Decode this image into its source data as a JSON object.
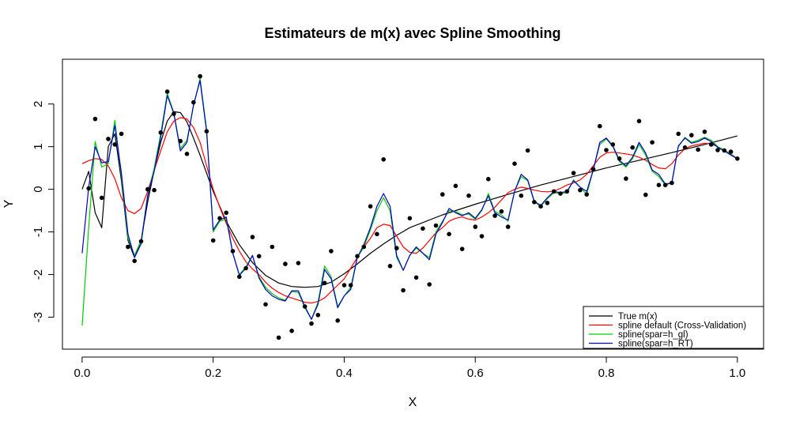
{
  "chart_data": {
    "type": "scatter",
    "title": "Estimateurs de m(x) avec Spline Smoothing",
    "xlabel": "X",
    "ylabel": "Y",
    "xlim": [
      -0.03,
      1.04
    ],
    "ylim": [
      -3.75,
      3.05
    ],
    "xticks": [
      0.0,
      0.2,
      0.4,
      0.6,
      0.8,
      1.0
    ],
    "xtick_labels": [
      "0.0",
      "0.2",
      "0.4",
      "0.6",
      "0.8",
      "1.0"
    ],
    "yticks": [
      -3,
      -2,
      -1,
      0,
      1,
      2
    ],
    "ytick_labels": [
      "-3",
      "-2",
      "-1",
      "0",
      "1",
      "2"
    ],
    "legend_position": "bottom-right",
    "points": {
      "x": [
        0.01,
        0.02,
        0.03,
        0.04,
        0.05,
        0.06,
        0.07,
        0.08,
        0.09,
        0.1,
        0.11,
        0.12,
        0.13,
        0.14,
        0.15,
        0.16,
        0.17,
        0.18,
        0.19,
        0.2,
        0.21,
        0.22,
        0.23,
        0.24,
        0.25,
        0.26,
        0.27,
        0.28,
        0.29,
        0.3,
        0.31,
        0.32,
        0.33,
        0.34,
        0.35,
        0.36,
        0.37,
        0.38,
        0.39,
        0.4,
        0.41,
        0.42,
        0.43,
        0.44,
        0.45,
        0.46,
        0.47,
        0.48,
        0.49,
        0.5,
        0.51,
        0.52,
        0.53,
        0.54,
        0.55,
        0.56,
        0.57,
        0.58,
        0.59,
        0.6,
        0.61,
        0.62,
        0.63,
        0.64,
        0.65,
        0.66,
        0.67,
        0.68,
        0.69,
        0.7,
        0.71,
        0.72,
        0.73,
        0.74,
        0.75,
        0.76,
        0.77,
        0.78,
        0.79,
        0.8,
        0.81,
        0.82,
        0.83,
        0.84,
        0.85,
        0.86,
        0.87,
        0.88,
        0.89,
        0.9,
        0.91,
        0.92,
        0.93,
        0.94,
        0.95,
        0.96,
        0.97,
        0.98,
        0.99,
        1.0
      ],
      "y": [
        0.02,
        1.65,
        -0.2,
        1.18,
        1.05,
        1.3,
        -1.35,
        -1.68,
        -1.22,
        0.0,
        -0.02,
        1.33,
        2.29,
        1.77,
        1.13,
        0.83,
        2.04,
        2.65,
        1.36,
        -1.2,
        -0.68,
        -0.55,
        -1.45,
        -2.05,
        -1.85,
        -1.12,
        -1.57,
        -2.7,
        -1.35,
        -3.48,
        -1.75,
        -3.32,
        -1.73,
        -2.75,
        -3.15,
        -2.95,
        -2.2,
        -1.45,
        -3.08,
        -2.25,
        -2.25,
        -1.57,
        -1.35,
        -0.4,
        -1.05,
        0.7,
        -1.8,
        -1.38,
        -2.37,
        -0.68,
        -2.07,
        -0.92,
        -2.23,
        -0.85,
        -0.12,
        -1.05,
        0.08,
        -1.4,
        -0.15,
        -0.88,
        -1.1,
        0.24,
        -0.62,
        -0.52,
        -0.88,
        0.6,
        -0.15,
        0.91,
        -0.3,
        -0.4,
        -0.32,
        -0.05,
        -0.1,
        -0.05,
        0.38,
        -0.02,
        -0.12,
        0.47,
        1.48,
        0.92,
        1.05,
        0.72,
        0.25,
        0.98,
        1.6,
        -0.13,
        1.1,
        0.1,
        0.1,
        0.15,
        1.3,
        0.98,
        1.27,
        0.93,
        1.35,
        1.05,
        0.92,
        0.91,
        0.88,
        0.72
      ]
    },
    "series": [
      {
        "name": "True m(x)",
        "color": "#000000",
        "x": [
          0.0,
          0.01,
          0.02,
          0.03,
          0.04,
          0.05,
          0.06,
          0.07,
          0.08,
          0.09,
          0.1,
          0.11,
          0.12,
          0.13,
          0.14,
          0.15,
          0.16,
          0.17,
          0.18,
          0.2,
          0.22,
          0.24,
          0.26,
          0.28,
          0.3,
          0.32,
          0.34,
          0.36,
          0.38,
          0.4,
          0.42,
          0.44,
          0.46,
          0.48,
          0.5,
          0.55,
          0.6,
          0.65,
          0.7,
          0.75,
          0.8,
          0.85,
          0.9,
          0.95,
          1.0
        ],
        "y": [
          0.0,
          0.42,
          -0.55,
          -0.9,
          1.0,
          1.3,
          0.2,
          -1.2,
          -1.6,
          -1.2,
          -0.3,
          0.45,
          1.1,
          1.6,
          1.82,
          1.8,
          1.58,
          1.2,
          0.8,
          -0.05,
          -0.75,
          -1.3,
          -1.72,
          -2.02,
          -2.2,
          -2.28,
          -2.3,
          -2.28,
          -2.18,
          -1.98,
          -1.75,
          -1.5,
          -1.28,
          -1.08,
          -0.9,
          -0.6,
          -0.35,
          -0.12,
          0.1,
          0.3,
          0.5,
          0.68,
          0.86,
          1.05,
          1.25
        ]
      },
      {
        "name": "spline default (Cross-Validation)",
        "color": "#ff0000",
        "x": [
          0.0,
          0.01,
          0.02,
          0.03,
          0.04,
          0.05,
          0.06,
          0.07,
          0.08,
          0.09,
          0.1,
          0.11,
          0.12,
          0.13,
          0.14,
          0.15,
          0.16,
          0.17,
          0.18,
          0.19,
          0.2,
          0.21,
          0.22,
          0.23,
          0.24,
          0.25,
          0.26,
          0.27,
          0.28,
          0.29,
          0.3,
          0.31,
          0.32,
          0.33,
          0.34,
          0.35,
          0.36,
          0.37,
          0.38,
          0.39,
          0.4,
          0.41,
          0.42,
          0.43,
          0.44,
          0.45,
          0.46,
          0.47,
          0.48,
          0.49,
          0.5,
          0.51,
          0.52,
          0.53,
          0.54,
          0.55,
          0.56,
          0.57,
          0.58,
          0.59,
          0.6,
          0.61,
          0.62,
          0.63,
          0.64,
          0.65,
          0.66,
          0.67,
          0.68,
          0.69,
          0.7,
          0.71,
          0.72,
          0.73,
          0.74,
          0.75,
          0.76,
          0.77,
          0.78,
          0.79,
          0.8,
          0.81,
          0.82,
          0.83,
          0.84,
          0.85,
          0.86,
          0.87,
          0.88,
          0.89,
          0.9,
          0.91,
          0.92,
          0.93,
          0.94,
          0.95,
          0.96,
          0.97,
          0.98,
          0.99,
          1.0
        ],
        "y": [
          0.6,
          0.67,
          0.72,
          0.7,
          0.55,
          0.25,
          -0.2,
          -0.5,
          -0.57,
          -0.45,
          -0.05,
          0.45,
          0.9,
          1.35,
          1.6,
          1.68,
          1.65,
          1.45,
          1.1,
          0.55,
          0.0,
          -0.42,
          -0.8,
          -1.15,
          -1.45,
          -1.7,
          -1.87,
          -2.0,
          -2.18,
          -2.32,
          -2.42,
          -2.5,
          -2.55,
          -2.6,
          -2.65,
          -2.67,
          -2.63,
          -2.55,
          -2.4,
          -2.25,
          -2.1,
          -1.85,
          -1.6,
          -1.35,
          -1.15,
          -0.9,
          -0.82,
          -0.85,
          -1.1,
          -1.35,
          -1.48,
          -1.5,
          -1.38,
          -1.2,
          -1.02,
          -0.9,
          -0.75,
          -0.68,
          -0.65,
          -0.7,
          -0.72,
          -0.65,
          -0.55,
          -0.42,
          -0.25,
          -0.08,
          0.0,
          0.05,
          0.02,
          -0.02,
          -0.05,
          -0.06,
          -0.04,
          0.02,
          0.1,
          0.15,
          0.22,
          0.35,
          0.55,
          0.75,
          0.85,
          0.87,
          0.85,
          0.83,
          0.8,
          0.75,
          0.68,
          0.58,
          0.5,
          0.48,
          0.6,
          0.8,
          0.95,
          1.02,
          1.05,
          1.08,
          1.06,
          1.0,
          0.92,
          0.83,
          0.72
        ]
      },
      {
        "name": "spline(spar=h_gl)",
        "color": "#00cc00",
        "x": [
          0.0,
          0.01,
          0.02,
          0.03,
          0.04,
          0.05,
          0.06,
          0.07,
          0.08,
          0.09,
          0.1,
          0.11,
          0.12,
          0.13,
          0.14,
          0.15,
          0.16,
          0.17,
          0.18,
          0.19,
          0.2,
          0.21,
          0.22,
          0.23,
          0.24,
          0.25,
          0.26,
          0.27,
          0.28,
          0.29,
          0.3,
          0.31,
          0.32,
          0.33,
          0.34,
          0.35,
          0.36,
          0.37,
          0.38,
          0.39,
          0.4,
          0.41,
          0.42,
          0.43,
          0.44,
          0.45,
          0.46,
          0.47,
          0.48,
          0.49,
          0.5,
          0.51,
          0.52,
          0.53,
          0.54,
          0.55,
          0.56,
          0.57,
          0.58,
          0.59,
          0.6,
          0.61,
          0.62,
          0.63,
          0.64,
          0.65,
          0.66,
          0.67,
          0.68,
          0.69,
          0.7,
          0.71,
          0.72,
          0.73,
          0.74,
          0.75,
          0.76,
          0.77,
          0.78,
          0.79,
          0.8,
          0.81,
          0.82,
          0.83,
          0.84,
          0.85,
          0.86,
          0.87,
          0.88,
          0.89,
          0.9,
          0.91,
          0.92,
          0.93,
          0.94,
          0.95,
          0.96,
          0.97,
          0.98,
          0.99,
          1.0
        ],
        "y": [
          -3.2,
          -0.9,
          1.12,
          0.52,
          0.6,
          1.62,
          0.3,
          -1.15,
          -1.55,
          -1.2,
          -0.15,
          0.5,
          1.3,
          2.25,
          1.8,
          0.95,
          1.15,
          1.95,
          2.6,
          1.4,
          -1.0,
          -0.75,
          -0.7,
          -1.5,
          -2.0,
          -1.82,
          -1.55,
          -2.05,
          -2.3,
          -2.45,
          -2.55,
          -2.6,
          -2.4,
          -2.42,
          -2.78,
          -3.05,
          -2.65,
          -1.8,
          -2.05,
          -2.75,
          -2.5,
          -2.3,
          -1.6,
          -1.35,
          -0.95,
          -0.5,
          -0.2,
          -0.5,
          -1.6,
          -1.9,
          -1.55,
          -1.38,
          -1.5,
          -1.6,
          -1.0,
          -0.75,
          -0.5,
          -0.52,
          -0.6,
          -0.58,
          -0.7,
          -0.5,
          -0.1,
          -0.52,
          -0.6,
          -0.75,
          -0.05,
          0.3,
          0.2,
          -0.3,
          -0.4,
          -0.22,
          -0.08,
          -0.1,
          -0.08,
          0.22,
          0.05,
          -0.12,
          0.45,
          1.05,
          1.18,
          1.0,
          0.65,
          0.52,
          0.72,
          1.05,
          0.8,
          0.42,
          0.3,
          0.1,
          0.15,
          1.0,
          1.22,
          1.1,
          1.15,
          1.22,
          1.15,
          1.0,
          0.92,
          0.82,
          0.72
        ]
      },
      {
        "name": "spline(spar=h_RT)",
        "color": "#0000cc",
        "x": [
          0.0,
          0.01,
          0.02,
          0.03,
          0.04,
          0.05,
          0.06,
          0.07,
          0.08,
          0.09,
          0.1,
          0.11,
          0.12,
          0.13,
          0.14,
          0.15,
          0.16,
          0.17,
          0.18,
          0.19,
          0.2,
          0.21,
          0.22,
          0.23,
          0.24,
          0.25,
          0.26,
          0.27,
          0.28,
          0.29,
          0.3,
          0.31,
          0.32,
          0.33,
          0.34,
          0.35,
          0.36,
          0.37,
          0.38,
          0.39,
          0.4,
          0.41,
          0.42,
          0.43,
          0.44,
          0.45,
          0.46,
          0.47,
          0.48,
          0.49,
          0.5,
          0.51,
          0.52,
          0.53,
          0.54,
          0.55,
          0.56,
          0.57,
          0.58,
          0.59,
          0.6,
          0.61,
          0.62,
          0.63,
          0.64,
          0.65,
          0.66,
          0.67,
          0.68,
          0.69,
          0.7,
          0.71,
          0.72,
          0.73,
          0.74,
          0.75,
          0.76,
          0.77,
          0.78,
          0.79,
          0.8,
          0.81,
          0.82,
          0.83,
          0.84,
          0.85,
          0.86,
          0.87,
          0.88,
          0.89,
          0.9,
          0.91,
          0.92,
          0.93,
          0.94,
          0.95,
          0.96,
          0.97,
          0.98,
          0.99,
          1.0
        ],
        "y": [
          -1.5,
          0.05,
          1.0,
          0.62,
          0.65,
          1.5,
          0.38,
          -1.05,
          -1.6,
          -1.28,
          -0.15,
          0.42,
          1.22,
          2.2,
          1.78,
          0.9,
          1.1,
          1.98,
          2.55,
          1.35,
          -0.95,
          -0.72,
          -0.65,
          -1.5,
          -2.02,
          -1.85,
          -1.55,
          -2.08,
          -2.35,
          -2.5,
          -2.58,
          -2.62,
          -2.38,
          -2.38,
          -2.75,
          -3.05,
          -2.7,
          -1.88,
          -2.1,
          -2.78,
          -2.5,
          -2.35,
          -1.6,
          -1.3,
          -0.9,
          -0.4,
          -0.1,
          -0.4,
          -1.55,
          -1.9,
          -1.55,
          -1.35,
          -1.5,
          -1.65,
          -1.05,
          -0.78,
          -0.45,
          -0.55,
          -0.62,
          -0.55,
          -0.68,
          -0.48,
          -0.15,
          -0.55,
          -0.65,
          -0.72,
          -0.05,
          0.35,
          0.22,
          -0.28,
          -0.38,
          -0.2,
          -0.05,
          -0.08,
          -0.05,
          0.2,
          0.05,
          -0.05,
          0.45,
          1.1,
          1.2,
          1.02,
          0.68,
          0.55,
          0.75,
          1.1,
          0.85,
          0.45,
          0.35,
          0.12,
          0.15,
          1.02,
          1.2,
          1.08,
          1.12,
          1.2,
          1.12,
          0.98,
          0.9,
          0.8,
          0.72
        ]
      }
    ]
  }
}
